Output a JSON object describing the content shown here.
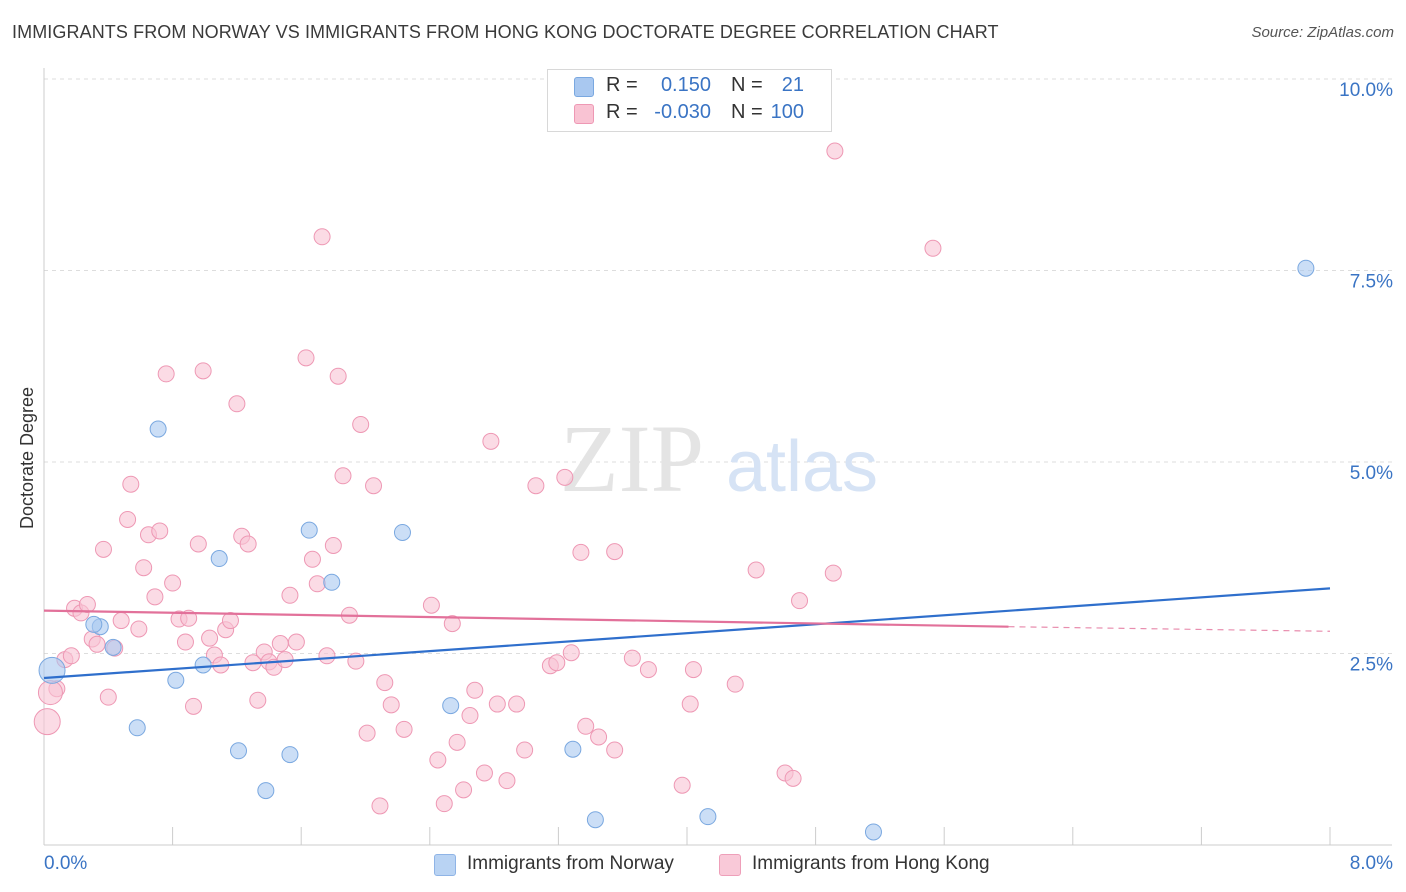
{
  "title": "IMMIGRANTS FROM NORWAY VS IMMIGRANTS FROM HONG KONG DOCTORATE DEGREE CORRELATION CHART",
  "source": "Source: ZipAtlas.com",
  "watermark": {
    "zip": "ZIP",
    "atlas": "atlas"
  },
  "legend": {
    "rows": [
      {
        "r_label": "R =",
        "r_value": "0.150",
        "n_label": "N =",
        "n_value": "21",
        "color": "#a9c8f0",
        "stroke": "#7aa8e0",
        "text_color": "#3a74c4"
      },
      {
        "r_label": "R =",
        "r_value": "-0.030",
        "n_label": "N =",
        "n_value": "100",
        "color": "#f9c3d3",
        "stroke": "#ee98b4",
        "text_color": "#3a74c4"
      }
    ]
  },
  "bottom_legend": [
    {
      "label": "Immigrants from Norway",
      "color": "#b9d3f3",
      "stroke": "#8fb4e6"
    },
    {
      "label": "Immigrants from Hong Kong",
      "color": "#f9c9d8",
      "stroke": "#ee9fb9"
    }
  ],
  "chart_data": {
    "type": "scatter",
    "title": "IMMIGRANTS FROM NORWAY VS IMMIGRANTS FROM HONG KONG DOCTORATE DEGREE CORRELATION CHART",
    "xlabel": "",
    "ylabel": "Doctorate Degree",
    "xlim": [
      0,
      8
    ],
    "ylim": [
      0,
      10.5
    ],
    "x_tick_labels": [
      {
        "value": 0,
        "label": "0.0%"
      },
      {
        "value": 8,
        "label": "8.0%"
      }
    ],
    "y_tick_labels": [
      {
        "value": 2.5,
        "label": "2.5%"
      },
      {
        "value": 5.0,
        "label": "5.0%"
      },
      {
        "value": 7.5,
        "label": "7.5%"
      },
      {
        "value": 10.0,
        "label": "10.0%"
      }
    ],
    "grid": true,
    "series": [
      {
        "name": "Immigrants from Norway",
        "color": "#a9c8f0",
        "stroke": "#7aa8e0",
        "line_color": "#2f6fcc",
        "trend": {
          "x0": 0.0,
          "y0": 2.18,
          "x1": 8.0,
          "y1": 3.35
        },
        "points": [
          [
            0.05,
            2.28
          ],
          [
            0.35,
            2.85
          ],
          [
            0.31,
            2.88
          ],
          [
            0.43,
            2.58
          ],
          [
            0.71,
            5.43
          ],
          [
            0.82,
            2.15
          ],
          [
            0.99,
            2.35
          ],
          [
            1.09,
            3.74
          ],
          [
            1.21,
            1.23
          ],
          [
            1.38,
            0.71
          ],
          [
            1.53,
            1.18
          ],
          [
            1.65,
            4.11
          ],
          [
            1.79,
            3.43
          ],
          [
            2.23,
            4.08
          ],
          [
            2.53,
            1.82
          ],
          [
            3.29,
            1.25
          ],
          [
            3.43,
            0.33
          ],
          [
            4.13,
            0.37
          ],
          [
            5.16,
            0.17
          ],
          [
            7.85,
            7.53
          ],
          [
            0.58,
            1.53
          ]
        ]
      },
      {
        "name": "Immigrants from Hong Kong",
        "color": "#f9c3d3",
        "stroke": "#ee98b4",
        "line_color": "#e2719a",
        "trend": {
          "x0": 0.0,
          "y0": 3.06,
          "x1": 6.0,
          "y1": 2.85,
          "dash_x1": 8.0,
          "dash_y1": 2.79
        },
        "points": [
          [
            0.02,
            1.61
          ],
          [
            0.08,
            2.04
          ],
          [
            0.13,
            2.42
          ],
          [
            0.17,
            2.47
          ],
          [
            0.19,
            3.09
          ],
          [
            0.23,
            3.03
          ],
          [
            0.27,
            3.14
          ],
          [
            0.3,
            2.69
          ],
          [
            0.33,
            2.62
          ],
          [
            0.37,
            3.86
          ],
          [
            0.4,
            1.93
          ],
          [
            0.44,
            2.57
          ],
          [
            0.48,
            2.93
          ],
          [
            0.52,
            4.25
          ],
          [
            0.54,
            4.71
          ],
          [
            0.59,
            2.82
          ],
          [
            0.62,
            3.62
          ],
          [
            0.65,
            4.05
          ],
          [
            0.69,
            3.24
          ],
          [
            0.72,
            4.1
          ],
          [
            0.76,
            6.15
          ],
          [
            0.8,
            3.42
          ],
          [
            0.84,
            2.95
          ],
          [
            0.88,
            2.65
          ],
          [
            0.9,
            2.96
          ],
          [
            0.93,
            1.81
          ],
          [
            0.96,
            3.93
          ],
          [
            0.99,
            6.19
          ],
          [
            1.03,
            2.7
          ],
          [
            1.06,
            2.48
          ],
          [
            1.1,
            2.35
          ],
          [
            1.13,
            2.81
          ],
          [
            1.16,
            2.93
          ],
          [
            1.2,
            5.76
          ],
          [
            1.23,
            4.03
          ],
          [
            1.27,
            3.93
          ],
          [
            1.3,
            2.38
          ],
          [
            1.33,
            1.89
          ],
          [
            1.37,
            2.52
          ],
          [
            1.4,
            2.39
          ],
          [
            1.43,
            2.32
          ],
          [
            1.47,
            2.63
          ],
          [
            1.5,
            2.42
          ],
          [
            1.53,
            3.26
          ],
          [
            1.57,
            2.65
          ],
          [
            1.63,
            6.36
          ],
          [
            1.67,
            3.73
          ],
          [
            1.7,
            3.41
          ],
          [
            1.73,
            7.94
          ],
          [
            1.76,
            2.47
          ],
          [
            1.8,
            3.91
          ],
          [
            1.83,
            6.12
          ],
          [
            1.86,
            4.82
          ],
          [
            1.9,
            3.0
          ],
          [
            1.94,
            2.4
          ],
          [
            1.97,
            5.49
          ],
          [
            2.01,
            1.46
          ],
          [
            2.05,
            4.69
          ],
          [
            2.09,
            0.51
          ],
          [
            2.12,
            2.12
          ],
          [
            2.16,
            1.83
          ],
          [
            2.24,
            1.51
          ],
          [
            2.41,
            3.13
          ],
          [
            2.45,
            1.11
          ],
          [
            2.49,
            0.54
          ],
          [
            2.54,
            2.89
          ],
          [
            2.57,
            1.34
          ],
          [
            2.61,
            0.72
          ],
          [
            2.65,
            1.69
          ],
          [
            2.68,
            2.02
          ],
          [
            2.74,
            0.94
          ],
          [
            2.78,
            5.27
          ],
          [
            2.82,
            1.84
          ],
          [
            2.88,
            0.84
          ],
          [
            2.94,
            1.84
          ],
          [
            2.99,
            1.24
          ],
          [
            3.06,
            4.69
          ],
          [
            3.15,
            2.34
          ],
          [
            3.19,
            2.38
          ],
          [
            3.24,
            4.8
          ],
          [
            3.28,
            2.51
          ],
          [
            3.34,
            3.82
          ],
          [
            3.37,
            1.55
          ],
          [
            3.45,
            1.41
          ],
          [
            3.55,
            3.83
          ],
          [
            3.66,
            2.44
          ],
          [
            3.76,
            2.29
          ],
          [
            3.97,
            0.78
          ],
          [
            4.02,
            1.84
          ],
          [
            4.04,
            2.29
          ],
          [
            4.3,
            2.1
          ],
          [
            4.43,
            3.59
          ],
          [
            4.61,
            0.94
          ],
          [
            4.66,
            0.87
          ],
          [
            4.7,
            3.19
          ],
          [
            4.91,
            3.55
          ],
          [
            4.92,
            9.06
          ],
          [
            5.53,
            7.79
          ],
          [
            0.04,
            1.99
          ],
          [
            3.55,
            1.24
          ]
        ]
      }
    ]
  }
}
